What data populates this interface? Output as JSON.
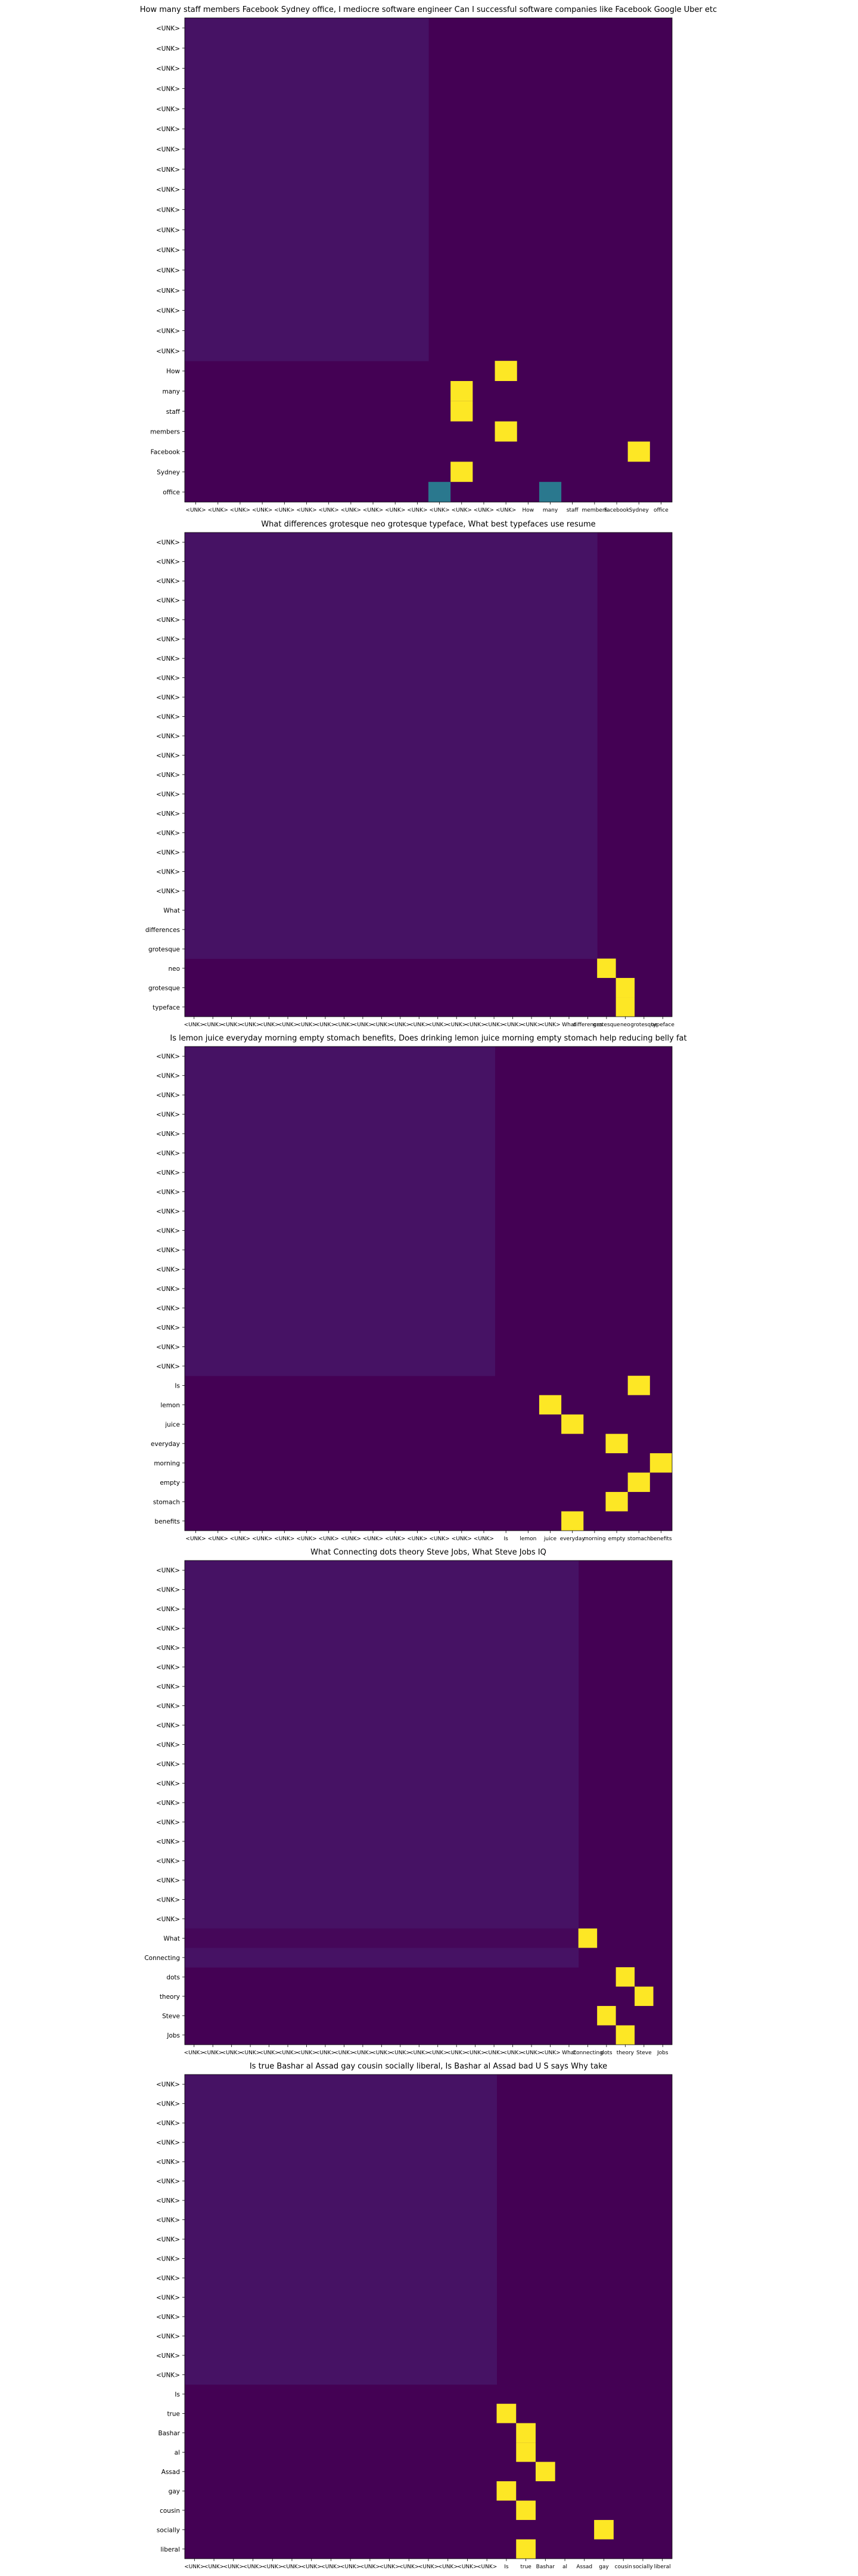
{
  "chart_data": [
    {
      "type": "heatmap",
      "title": "How many staff members Facebook Sydney office, I mediocre software engineer Can I successful software companies like Facebook Google Uber etc",
      "rows": [
        "<UNK>",
        "<UNK>",
        "<UNK>",
        "<UNK>",
        "<UNK>",
        "<UNK>",
        "<UNK>",
        "<UNK>",
        "<UNK>",
        "<UNK>",
        "<UNK>",
        "<UNK>",
        "<UNK>",
        "<UNK>",
        "<UNK>",
        "<UNK>",
        "<UNK>",
        "How",
        "many",
        "staff",
        "members",
        "Facebook",
        "Sydney",
        "office"
      ],
      "columns": [
        "<UNK>",
        "<UNK>",
        "<UNK>",
        "<UNK>",
        "<UNK>",
        "<UNK>",
        "<UNK>",
        "<UNK>",
        "<UNK>",
        "<UNK>",
        "<UNK>",
        "<UNK>",
        "<UNK>",
        "<UNK>",
        "<UNK>",
        "How",
        "many",
        "staff",
        "members",
        "Facebook",
        "Sydney",
        "office"
      ],
      "background": {
        "pad_rows": 17,
        "pad_cols": 11,
        "pad_value": 0.06,
        "other_value": 0.0
      },
      "highlights": [
        {
          "row": 17,
          "col": 14,
          "value": 1.0
        },
        {
          "row": 18,
          "col": 12,
          "value": 1.0
        },
        {
          "row": 19,
          "col": 12,
          "value": 1.0
        },
        {
          "row": 20,
          "col": 14,
          "value": 1.0
        },
        {
          "row": 21,
          "col": 20,
          "value": 1.0
        },
        {
          "row": 22,
          "col": 12,
          "value": 1.0
        },
        {
          "row": 23,
          "col": 11,
          "value": 0.5
        },
        {
          "row": 23,
          "col": 16,
          "value": 0.5
        }
      ]
    },
    {
      "type": "heatmap",
      "title": "What differences grotesque neo grotesque typeface, What best typefaces use resume",
      "rows": [
        "<UNK>",
        "<UNK>",
        "<UNK>",
        "<UNK>",
        "<UNK>",
        "<UNK>",
        "<UNK>",
        "<UNK>",
        "<UNK>",
        "<UNK>",
        "<UNK>",
        "<UNK>",
        "<UNK>",
        "<UNK>",
        "<UNK>",
        "<UNK>",
        "<UNK>",
        "<UNK>",
        "<UNK>",
        "What",
        "differences",
        "grotesque",
        "neo",
        "grotesque",
        "typeface"
      ],
      "columns": [
        "<UNK>",
        "<UNK>",
        "<UNK>",
        "<UNK>",
        "<UNK>",
        "<UNK>",
        "<UNK>",
        "<UNK>",
        "<UNK>",
        "<UNK>",
        "<UNK>",
        "<UNK>",
        "<UNK>",
        "<UNK>",
        "<UNK>",
        "<UNK>",
        "<UNK>",
        "<UNK>",
        "<UNK>",
        "<UNK>",
        "What",
        "differences",
        "grotesque",
        "neo",
        "grotesque",
        "typeface"
      ],
      "background": {
        "pad_rows": 22,
        "pad_cols": 22,
        "pad_value": 0.06,
        "other_value": 0.0
      },
      "highlights": [
        {
          "row": 22,
          "col": 22,
          "value": 1.0
        },
        {
          "row": 23,
          "col": 23,
          "value": 1.0
        },
        {
          "row": 24,
          "col": 23,
          "value": 1.0
        }
      ]
    },
    {
      "type": "heatmap",
      "title": "Is lemon juice everyday morning empty stomach benefits, Does drinking lemon juice morning empty stomach help reducing belly fat",
      "rows": [
        "<UNK>",
        "<UNK>",
        "<UNK>",
        "<UNK>",
        "<UNK>",
        "<UNK>",
        "<UNK>",
        "<UNK>",
        "<UNK>",
        "<UNK>",
        "<UNK>",
        "<UNK>",
        "<UNK>",
        "<UNK>",
        "<UNK>",
        "<UNK>",
        "<UNK>",
        "Is",
        "lemon",
        "juice",
        "everyday",
        "morning",
        "empty",
        "stomach",
        "benefits"
      ],
      "columns": [
        "<UNK>",
        "<UNK>",
        "<UNK>",
        "<UNK>",
        "<UNK>",
        "<UNK>",
        "<UNK>",
        "<UNK>",
        "<UNK>",
        "<UNK>",
        "<UNK>",
        "<UNK>",
        "<UNK>",
        "<UNK>",
        "Is",
        "lemon",
        "juice",
        "everyday",
        "morning",
        "empty",
        "stomach",
        "benefits"
      ],
      "background": {
        "pad_rows": 17,
        "pad_cols": 14,
        "pad_value": 0.06,
        "other_value": 0.0
      },
      "highlights": [
        {
          "row": 17,
          "col": 20,
          "value": 1.0
        },
        {
          "row": 18,
          "col": 16,
          "value": 1.0
        },
        {
          "row": 19,
          "col": 17,
          "value": 1.0
        },
        {
          "row": 20,
          "col": 19,
          "value": 1.0
        },
        {
          "row": 21,
          "col": 21,
          "value": 1.0
        },
        {
          "row": 22,
          "col": 20,
          "value": 1.0
        },
        {
          "row": 23,
          "col": 19,
          "value": 1.0
        },
        {
          "row": 24,
          "col": 17,
          "value": 1.0
        }
      ]
    },
    {
      "type": "heatmap",
      "title": "What Connecting dots theory Steve Jobs, What Steve Jobs IQ",
      "rows": [
        "<UNK>",
        "<UNK>",
        "<UNK>",
        "<UNK>",
        "<UNK>",
        "<UNK>",
        "<UNK>",
        "<UNK>",
        "<UNK>",
        "<UNK>",
        "<UNK>",
        "<UNK>",
        "<UNK>",
        "<UNK>",
        "<UNK>",
        "<UNK>",
        "<UNK>",
        "<UNK>",
        "<UNK>",
        "What",
        "Connecting",
        "dots",
        "theory",
        "Steve",
        "Jobs"
      ],
      "columns": [
        "<UNK>",
        "<UNK>",
        "<UNK>",
        "<UNK>",
        "<UNK>",
        "<UNK>",
        "<UNK>",
        "<UNK>",
        "<UNK>",
        "<UNK>",
        "<UNK>",
        "<UNK>",
        "<UNK>",
        "<UNK>",
        "<UNK>",
        "<UNK>",
        "<UNK>",
        "<UNK>",
        "<UNK>",
        "<UNK>",
        "What",
        "Connecting",
        "dots",
        "theory",
        "Steve",
        "Jobs"
      ],
      "background": {
        "pad_rows": 21,
        "pad_cols": 21,
        "pad_value": 0.06,
        "other_value": 0.0,
        "row_19_pad_value": 0.02
      },
      "highlights": [
        {
          "row": 19,
          "col": 21,
          "value": 1.0
        },
        {
          "row": 21,
          "col": 23,
          "value": 1.0
        },
        {
          "row": 22,
          "col": 24,
          "value": 1.0
        },
        {
          "row": 23,
          "col": 22,
          "value": 1.0
        },
        {
          "row": 24,
          "col": 23,
          "value": 1.0
        }
      ]
    },
    {
      "type": "heatmap",
      "title": "Is true Bashar al Assad gay cousin socially liberal, Is Bashar al Assad bad U S says Why take",
      "rows": [
        "<UNK>",
        "<UNK>",
        "<UNK>",
        "<UNK>",
        "<UNK>",
        "<UNK>",
        "<UNK>",
        "<UNK>",
        "<UNK>",
        "<UNK>",
        "<UNK>",
        "<UNK>",
        "<UNK>",
        "<UNK>",
        "<UNK>",
        "<UNK>",
        "Is",
        "true",
        "Bashar",
        "al",
        "Assad",
        "gay",
        "cousin",
        "socially",
        "liberal"
      ],
      "columns": [
        "<UNK>",
        "<UNK>",
        "<UNK>",
        "<UNK>",
        "<UNK>",
        "<UNK>",
        "<UNK>",
        "<UNK>",
        "<UNK>",
        "<UNK>",
        "<UNK>",
        "<UNK>",
        "<UNK>",
        "<UNK>",
        "<UNK>",
        "<UNK>",
        "Is",
        "true",
        "Bashar",
        "al",
        "Assad",
        "gay",
        "cousin",
        "socially",
        "liberal"
      ],
      "background": {
        "pad_rows": 16,
        "pad_cols": 16,
        "pad_value": 0.06,
        "other_value": 0.0
      },
      "highlights": [
        {
          "row": 17,
          "col": 16,
          "value": 1.0
        },
        {
          "row": 18,
          "col": 17,
          "value": 1.0
        },
        {
          "row": 19,
          "col": 17,
          "value": 1.0
        },
        {
          "row": 20,
          "col": 18,
          "value": 1.0
        },
        {
          "row": 21,
          "col": 16,
          "value": 1.0
        },
        {
          "row": 22,
          "col": 17,
          "value": 1.0
        },
        {
          "row": 23,
          "col": 21,
          "value": 1.0
        },
        {
          "row": 24,
          "col": 17,
          "value": 1.0
        }
      ]
    }
  ]
}
